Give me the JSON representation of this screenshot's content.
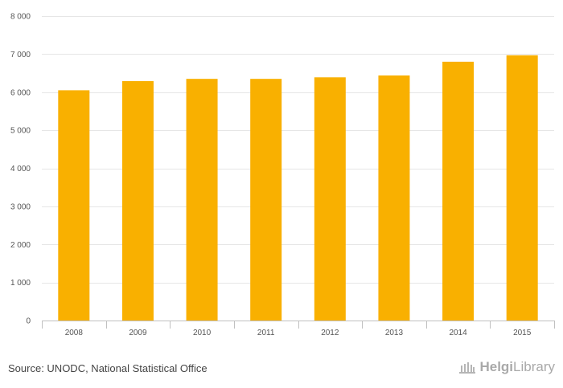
{
  "chart_data": {
    "type": "bar",
    "categories": [
      "2008",
      "2009",
      "2010",
      "2011",
      "2012",
      "2013",
      "2014",
      "2015"
    ],
    "values": [
      6050,
      6290,
      6350,
      6350,
      6390,
      6440,
      6800,
      6970
    ],
    "title": "",
    "xlabel": "",
    "ylabel": "",
    "ylim": [
      0,
      8000
    ],
    "yticks": [
      0,
      1000,
      2000,
      3000,
      4000,
      5000,
      6000,
      7000,
      8000
    ],
    "ytick_labels": [
      "0",
      "1 000",
      "2 000",
      "3 000",
      "4 000",
      "5 000",
      "6 000",
      "7 000",
      "8 000"
    ],
    "grid": true,
    "legend": "none",
    "bar_color": "#f9b000"
  },
  "footer": {
    "source": "Source: UNODC, National Statistical Office",
    "logo_bold": "Helgi",
    "logo_light": "Library"
  }
}
